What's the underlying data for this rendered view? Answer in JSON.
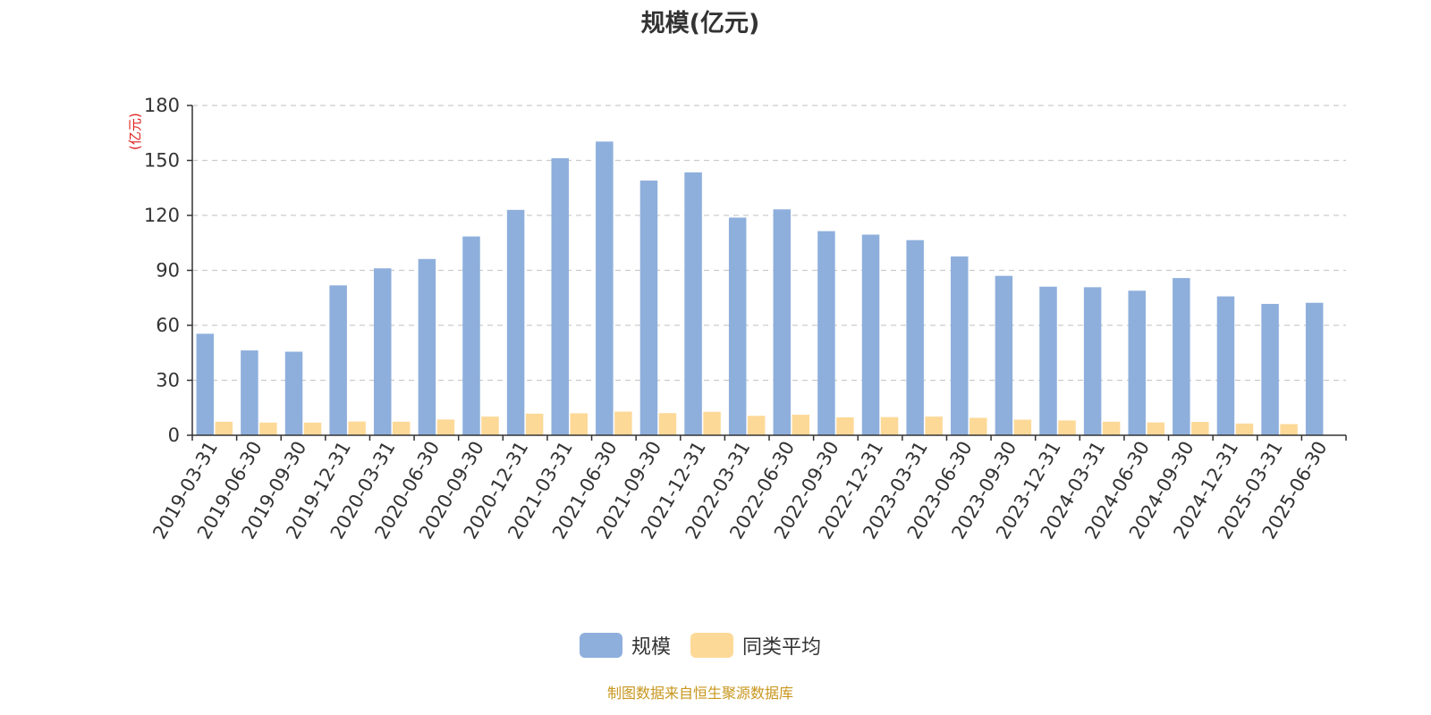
{
  "chart_data": {
    "type": "bar",
    "title": "规模(亿元)",
    "unit_label": "(亿元)",
    "categories": [
      "2019-03-31",
      "2019-06-30",
      "2019-09-30",
      "2019-12-31",
      "2020-03-31",
      "2020-06-30",
      "2020-09-30",
      "2020-12-31",
      "2021-03-31",
      "2021-06-30",
      "2021-09-30",
      "2021-12-31",
      "2022-03-31",
      "2022-06-30",
      "2022-09-30",
      "2022-12-31",
      "2023-03-31",
      "2023-06-30",
      "2023-09-30",
      "2023-12-31",
      "2024-03-31",
      "2024-06-30",
      "2024-09-30",
      "2024-12-31",
      "2025-03-31",
      "2025-06-30"
    ],
    "series": [
      {
        "name": "规模",
        "color": "#8eafdc",
        "values": [
          55.4,
          46.3,
          45.6,
          81.8,
          91.1,
          96.2,
          108.5,
          123.0,
          151.2,
          160.3,
          139.0,
          143.5,
          118.8,
          123.3,
          111.4,
          109.5,
          106.5,
          97.6,
          87.0,
          81.1,
          80.8,
          78.9,
          85.8,
          75.8,
          71.7,
          72.3
        ]
      },
      {
        "name": "同类平均",
        "color": "#fdd998",
        "values": [
          7.4,
          6.9,
          6.9,
          7.5,
          7.4,
          8.6,
          10.2,
          11.8,
          12.0,
          12.9,
          12.1,
          12.8,
          10.6,
          11.2,
          9.8,
          9.9,
          10.2,
          9.5,
          8.5,
          8.1,
          7.4,
          7.0,
          7.3,
          6.4,
          6.1,
          null
        ]
      }
    ],
    "ylim": [
      0,
      180
    ],
    "yticks": [
      0,
      30,
      60,
      90,
      120,
      150,
      180
    ],
    "grid": true,
    "legend_position": "bottom-center",
    "axis_color": "#333333",
    "unit_color": "#e01f1f",
    "grid_color": "#cccccc"
  },
  "footer": {
    "text": "制图数据来自恒生聚源数据库",
    "color": "#c8961e"
  }
}
